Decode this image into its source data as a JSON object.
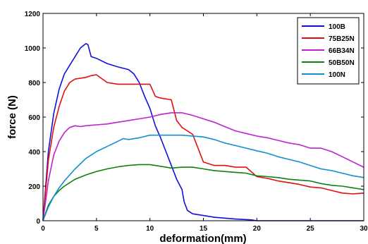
{
  "chart_data": {
    "type": "line",
    "xlabel": "deformation(mm)",
    "ylabel": "force (N)",
    "xlim": [
      0,
      30
    ],
    "ylim": [
      0,
      1200
    ],
    "xticks": [
      "0",
      "5",
      "10",
      "15",
      "20",
      "25",
      "30"
    ],
    "yticks": [
      "0",
      "200",
      "400",
      "600",
      "800",
      "1000",
      "1200"
    ],
    "grid": false,
    "legend_position": "top-right",
    "series": [
      {
        "name": "100B",
        "color": "#1010dd",
        "x": [
          0,
          0.5,
          1,
          1.5,
          2,
          2.5,
          3,
          3.5,
          4,
          4.2,
          4.5,
          5,
          6,
          7,
          8,
          8.5,
          9,
          9.5,
          10,
          10.5,
          11,
          11.5,
          12,
          12.5,
          13,
          13.2,
          13.5,
          14,
          15,
          16,
          18,
          19.5,
          20,
          22,
          25,
          30
        ],
        "y": [
          0,
          400,
          620,
          760,
          850,
          900,
          950,
          1000,
          1025,
          1020,
          950,
          940,
          910,
          890,
          875,
          850,
          800,
          720,
          650,
          550,
          480,
          400,
          320,
          240,
          180,
          110,
          60,
          40,
          30,
          20,
          10,
          5,
          0,
          0,
          0,
          0
        ]
      },
      {
        "name": "75B25N",
        "color": "#e01010",
        "x": [
          0,
          0.5,
          1,
          1.5,
          2,
          2.5,
          3,
          3.5,
          4,
          4.5,
          5,
          6,
          7,
          8,
          9,
          10,
          10.5,
          11,
          12,
          12.5,
          13,
          14,
          14.5,
          15,
          16,
          17,
          18,
          19,
          20,
          21,
          22,
          23,
          24,
          25,
          26,
          27,
          28,
          29,
          30
        ],
        "y": [
          0,
          350,
          540,
          660,
          750,
          800,
          820,
          825,
          830,
          840,
          845,
          800,
          790,
          790,
          790,
          790,
          720,
          710,
          700,
          580,
          540,
          500,
          420,
          340,
          320,
          320,
          310,
          310,
          255,
          245,
          230,
          220,
          210,
          195,
          190,
          175,
          160,
          155,
          160
        ]
      },
      {
        "name": "66B34N",
        "color": "#c020d0",
        "x": [
          0,
          0.5,
          1,
          1.5,
          2,
          2.5,
          3,
          3.5,
          4,
          5,
          6,
          7,
          8,
          9,
          10,
          11,
          12,
          13,
          14,
          15,
          16,
          17,
          18,
          19,
          20,
          21,
          22,
          23,
          24,
          25,
          26,
          27,
          28,
          29,
          30
        ],
        "y": [
          0,
          230,
          380,
          460,
          510,
          540,
          550,
          545,
          550,
          555,
          560,
          570,
          580,
          590,
          600,
          615,
          625,
          625,
          610,
          590,
          570,
          545,
          520,
          505,
          490,
          480,
          465,
          450,
          440,
          420,
          420,
          400,
          370,
          340,
          310
        ]
      },
      {
        "name": "50B50N",
        "color": "#108010",
        "x": [
          0,
          0.5,
          1,
          1.5,
          2,
          2.5,
          3,
          4,
          5,
          6,
          7,
          8,
          9,
          10,
          11,
          12,
          13,
          14,
          15,
          16,
          17,
          18,
          19,
          20,
          21,
          22,
          23,
          24,
          25,
          26,
          27,
          28,
          29,
          30
        ],
        "y": [
          0,
          90,
          140,
          175,
          200,
          220,
          240,
          265,
          285,
          300,
          312,
          320,
          325,
          325,
          315,
          305,
          310,
          310,
          300,
          290,
          285,
          280,
          275,
          260,
          255,
          250,
          240,
          235,
          230,
          215,
          205,
          200,
          190,
          180
        ]
      },
      {
        "name": "100N",
        "color": "#1090d0",
        "x": [
          0,
          0.5,
          1,
          1.5,
          2,
          3,
          4,
          5,
          6,
          7,
          7.5,
          8,
          9,
          10,
          11,
          12,
          13,
          14,
          15,
          16,
          17,
          18,
          19,
          20,
          21,
          22,
          23,
          24,
          25,
          26,
          27,
          28,
          29,
          30
        ],
        "y": [
          0,
          80,
          140,
          190,
          230,
          300,
          360,
          400,
          430,
          460,
          475,
          470,
          480,
          495,
          495,
          495,
          495,
          490,
          485,
          470,
          450,
          435,
          420,
          405,
          390,
          370,
          355,
          340,
          320,
          300,
          290,
          275,
          260,
          250
        ]
      }
    ]
  }
}
